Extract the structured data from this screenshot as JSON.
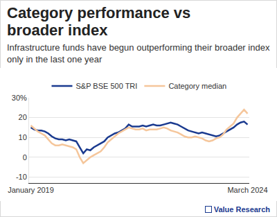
{
  "chart_data": {
    "type": "line",
    "title": "Category performance vs broader index",
    "subtitle": "Infrastructure funds have begun outperforming their broader index only in the last one year",
    "source": "Value Research",
    "categories": [
      "January 2019",
      null,
      null,
      null,
      null,
      null,
      null,
      null,
      null,
      null,
      null,
      null,
      null,
      null,
      null,
      null,
      null,
      null,
      null,
      null,
      null,
      null,
      null,
      null,
      null,
      null,
      null,
      null,
      null,
      null,
      null,
      null,
      null,
      null,
      null,
      null,
      null,
      null,
      null,
      null,
      null,
      null,
      null,
      null,
      null,
      null,
      null,
      null,
      null,
      null,
      null,
      null,
      null,
      null,
      null,
      null,
      null,
      null,
      null,
      null,
      null,
      null,
      "March 2024"
    ],
    "series": [
      {
        "name": "S&P BSE 500 TRI",
        "color": "#1a3a8f",
        "values": [
          15,
          14,
          13.5,
          13.5,
          13,
          12,
          10.5,
          9.5,
          9,
          9,
          8.5,
          9,
          8.5,
          8,
          5,
          2,
          4,
          3.5,
          5,
          6,
          7,
          8,
          10,
          11,
          12,
          12.5,
          13.5,
          14.5,
          16.5,
          15.5,
          15.5,
          15.5,
          16,
          15.5,
          16,
          16.5,
          16,
          16,
          16.5,
          17,
          17.5,
          17,
          16.5,
          15.5,
          14.5,
          13.5,
          13,
          12.5,
          12,
          12.5,
          12,
          11.5,
          11,
          10.5,
          11,
          12,
          13,
          14,
          15,
          16.5,
          17.5,
          18,
          16.5
        ]
      },
      {
        "name": "Category median",
        "color": "#f5c69b",
        "values": [
          16,
          14.5,
          13,
          12,
          11,
          9,
          7,
          6,
          6,
          6.5,
          6,
          5.5,
          5,
          4,
          0,
          -3,
          -1.5,
          0,
          1,
          2,
          3,
          5,
          7.5,
          9,
          10.5,
          12,
          13,
          14,
          15,
          14.5,
          14,
          14,
          14.5,
          13.5,
          14,
          14,
          14,
          14.5,
          15,
          14.5,
          13.5,
          13,
          12.5,
          11.5,
          10.5,
          10,
          10,
          10.5,
          10,
          9.5,
          8.5,
          8,
          8.5,
          9.5,
          10,
          11.5,
          14,
          15.5,
          17,
          20,
          22,
          24,
          22
        ]
      }
    ],
    "ylim": [
      -13,
      30
    ],
    "yticks": [
      -10,
      0,
      10,
      20,
      {
        "value": 30,
        "label": "30%"
      }
    ],
    "grid": true,
    "legend": "top"
  }
}
